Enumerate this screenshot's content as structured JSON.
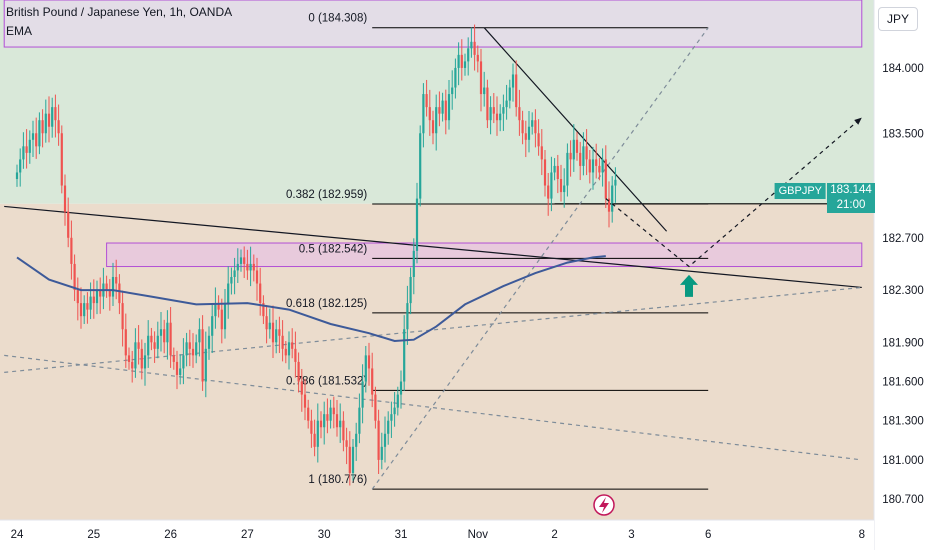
{
  "header": {
    "title": "British Pound / Japanese Yen, 1h, OANDA",
    "indicator": "EMA"
  },
  "currency_button": "JPY",
  "price_badge": {
    "symbol": "GBPJPY",
    "price": "183.144",
    "countdown": "21:00"
  },
  "colors": {
    "bull": "#26a69a",
    "bear": "#ef5350",
    "ema": "#3d5a99",
    "zone_purple": "#b24fd6",
    "upper_zone_fill": "#d9e8d9",
    "lower_zone_fill": "#ebdccc",
    "arrow": "#089981"
  },
  "chart_data": {
    "type": "candlestick",
    "symbol": "GBPJPY",
    "timeframe": "1h",
    "ylim": [
      180.54,
      184.52
    ],
    "yticks": [
      {
        "value": 184.0,
        "label": "184.000"
      },
      {
        "value": 183.5,
        "label": "183.500"
      },
      {
        "value": 182.7,
        "label": "182.700"
      },
      {
        "value": 182.3,
        "label": "182.300"
      },
      {
        "value": 181.9,
        "label": "181.900"
      },
      {
        "value": 181.6,
        "label": "181.600"
      },
      {
        "value": 181.3,
        "label": "181.300"
      },
      {
        "value": 181.0,
        "label": "181.000"
      },
      {
        "value": 180.7,
        "label": "180.700"
      }
    ],
    "xticks": [
      {
        "t": 0,
        "label": "24"
      },
      {
        "t": 24,
        "label": "25"
      },
      {
        "t": 48,
        "label": "26"
      },
      {
        "t": 72,
        "label": "27"
      },
      {
        "t": 96,
        "label": "30"
      },
      {
        "t": 120,
        "label": "31"
      },
      {
        "t": 144,
        "label": "Nov"
      },
      {
        "t": 168,
        "label": "2"
      },
      {
        "t": 192,
        "label": "3"
      },
      {
        "t": 216,
        "label": "6"
      },
      {
        "t": 264,
        "label": "8"
      }
    ],
    "closes": [
      183.2,
      183.3,
      183.4,
      183.35,
      183.45,
      183.5,
      183.4,
      183.6,
      183.5,
      183.65,
      183.55,
      183.7,
      183.6,
      183.5,
      183.1,
      182.9,
      182.7,
      182.5,
      182.3,
      182.2,
      182.1,
      182.2,
      182.15,
      182.25,
      182.2,
      182.3,
      182.25,
      182.35,
      182.3,
      182.25,
      182.4,
      182.35,
      182.2,
      182.0,
      181.8,
      181.75,
      181.7,
      181.9,
      181.85,
      181.7,
      181.8,
      181.95,
      181.9,
      181.85,
      181.95,
      182.0,
      181.9,
      182.05,
      181.8,
      181.75,
      181.65,
      181.7,
      181.8,
      181.9,
      181.85,
      181.8,
      181.9,
      182.0,
      181.6,
      181.85,
      181.95,
      182.1,
      182.2,
      182.15,
      182.0,
      182.2,
      182.35,
      182.4,
      182.45,
      182.5,
      182.55,
      182.5,
      182.45,
      182.5,
      182.45,
      182.35,
      182.2,
      182.1,
      182.0,
      182.05,
      181.9,
      182.0,
      181.95,
      181.85,
      181.8,
      181.9,
      181.85,
      181.75,
      181.6,
      181.5,
      181.4,
      181.3,
      181.2,
      181.1,
      181.3,
      181.25,
      181.35,
      181.3,
      181.4,
      181.35,
      181.25,
      181.3,
      181.15,
      181.1,
      180.9,
      181.1,
      181.2,
      181.4,
      181.6,
      181.8,
      181.7,
      181.5,
      181.3,
      181.0,
      181.1,
      181.2,
      181.3,
      181.35,
      181.4,
      181.5,
      181.6,
      182.0,
      182.2,
      182.4,
      182.6,
      183.0,
      183.5,
      183.8,
      183.7,
      183.6,
      183.5,
      183.7,
      183.65,
      183.75,
      183.6,
      183.8,
      183.85,
      184.0,
      184.1,
      184.0,
      184.05,
      184.15,
      184.2,
      184.1,
      184.05,
      183.8,
      183.85,
      183.6,
      183.7,
      183.65,
      183.6,
      183.65,
      183.7,
      183.75,
      183.85,
      183.95,
      183.7,
      183.6,
      183.5,
      183.45,
      183.55,
      183.6,
      183.5,
      183.4,
      183.3,
      183.1,
      183.0,
      183.2,
      183.25,
      183.15,
      183.05,
      183.1,
      183.35,
      183.3,
      183.45,
      183.35,
      183.25,
      183.4,
      183.3,
      183.2,
      183.3,
      183.25,
      183.2,
      183.3,
      183.0,
      182.9,
      183.1,
      183.144
    ],
    "ema": [
      {
        "t": 0,
        "v": 182.55
      },
      {
        "t": 10,
        "v": 182.38
      },
      {
        "t": 20,
        "v": 182.3
      },
      {
        "t": 30,
        "v": 182.3
      },
      {
        "t": 42,
        "v": 182.25
      },
      {
        "t": 56,
        "v": 182.19
      },
      {
        "t": 72,
        "v": 182.2
      },
      {
        "t": 85,
        "v": 182.15
      },
      {
        "t": 98,
        "v": 182.04
      },
      {
        "t": 110,
        "v": 181.97
      },
      {
        "t": 118,
        "v": 181.91
      },
      {
        "t": 124,
        "v": 181.92
      },
      {
        "t": 131,
        "v": 182.02
      },
      {
        "t": 140,
        "v": 182.19
      },
      {
        "t": 152,
        "v": 182.33
      },
      {
        "t": 162,
        "v": 182.43
      },
      {
        "t": 172,
        "v": 182.51
      },
      {
        "t": 180,
        "v": 182.55
      },
      {
        "t": 184,
        "v": 182.56
      }
    ],
    "fib_levels": [
      {
        "ratio": 0,
        "value": 184.308,
        "label": "0 (184.308)"
      },
      {
        "ratio": 0.382,
        "value": 182.959,
        "label": "0.382 (182.959)"
      },
      {
        "ratio": 0.5,
        "value": 182.542,
        "label": "0.5 (182.542)"
      },
      {
        "ratio": 0.618,
        "value": 182.125,
        "label": "0.618 (182.125)"
      },
      {
        "ratio": 0.786,
        "value": 181.532,
        "label": "0.786 (181.532)"
      },
      {
        "ratio": 1,
        "value": 180.776,
        "label": "1 (180.776)"
      }
    ],
    "fib_range": {
      "t_start": 111,
      "t_end": 216
    },
    "zones": [
      {
        "name": "upper-resistance-zone",
        "top": 184.52,
        "bottom": 184.16,
        "t_start": -4,
        "t_end": 264
      },
      {
        "name": "pivot-zone",
        "top": 182.66,
        "bottom": 182.48,
        "t_start": 28,
        "t_end": 264
      }
    ],
    "support_level": {
      "value": 182.96,
      "t_start": 168,
      "t_end": 264
    },
    "upper_bg_boundary": {
      "value": 182.96
    },
    "trendlines": [
      {
        "name": "descending-support-line",
        "style": "solid",
        "points": [
          {
            "t": -4,
            "v": 182.94
          },
          {
            "t": 264,
            "v": 182.32
          }
        ]
      },
      {
        "name": "lower-channel-line",
        "style": "dashed",
        "points": [
          {
            "t": -4,
            "v": 181.8
          },
          {
            "t": 264,
            "v": 181.0
          }
        ]
      },
      {
        "name": "upper-rising-line",
        "style": "dashed",
        "points": [
          {
            "t": -4,
            "v": 181.67
          },
          {
            "t": 264,
            "v": 182.32
          }
        ]
      },
      {
        "name": "fib-diagonal-line",
        "style": "dashed",
        "points": [
          {
            "t": 111,
            "v": 180.776
          },
          {
            "t": 216,
            "v": 184.308
          }
        ]
      },
      {
        "name": "down-trendline",
        "style": "solid",
        "points": [
          {
            "t": 146,
            "v": 184.308
          },
          {
            "t": 203,
            "v": 182.75
          }
        ]
      }
    ],
    "projection": {
      "points": [
        {
          "t": 184,
          "v": 183.0
        },
        {
          "t": 210,
          "v": 182.48
        },
        {
          "t": 264,
          "v": 183.62
        }
      ]
    },
    "arrow": {
      "t": 210,
      "v": 182.34,
      "direction": "up"
    }
  }
}
